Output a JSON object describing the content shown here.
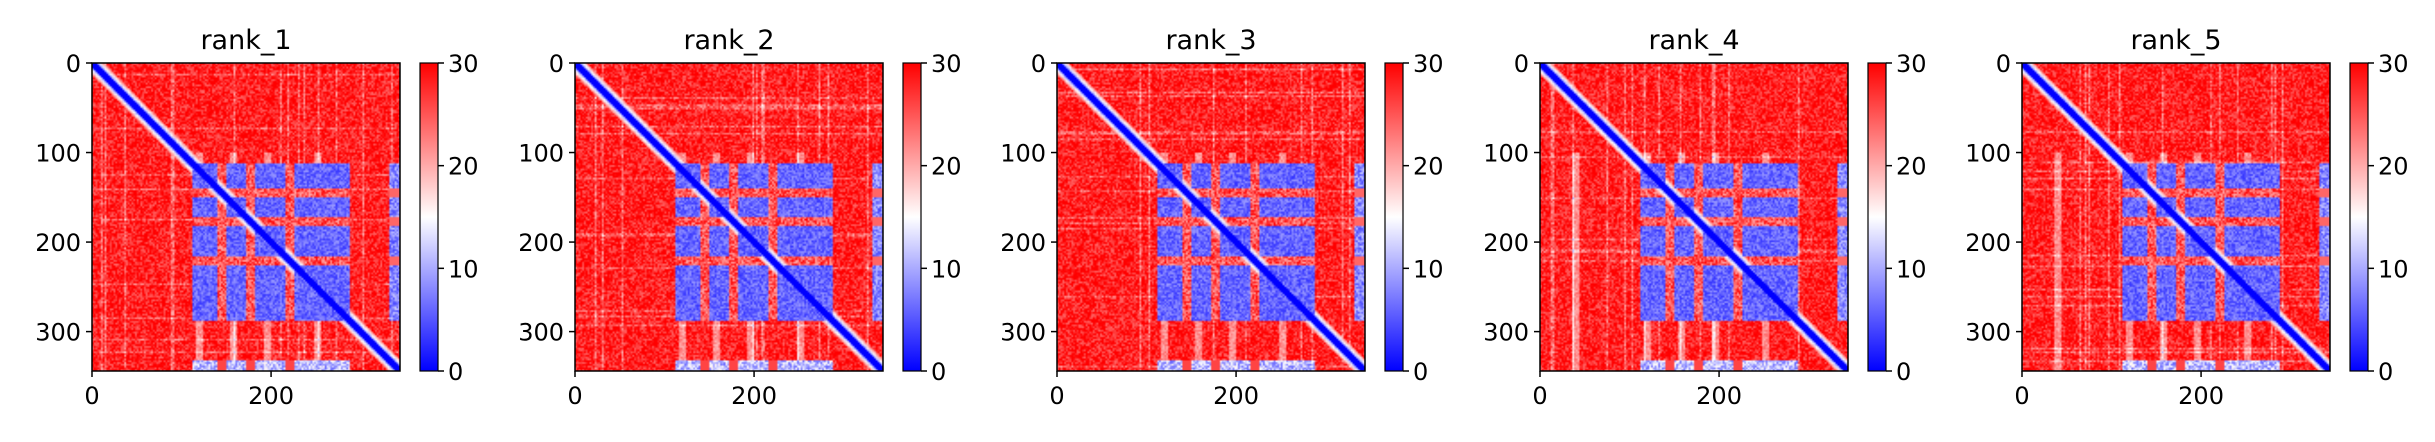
{
  "chart_data": [
    {
      "type": "heatmap",
      "title": "rank_1",
      "xlabel": "",
      "ylabel": "",
      "xlim": [
        0,
        344
      ],
      "ylim": [
        344,
        0
      ],
      "xticks": [
        0,
        200
      ],
      "xtick_labels": [
        "0",
        "200"
      ],
      "yticks": [
        0,
        100,
        200,
        300
      ],
      "ytick_labels": [
        "0",
        "100",
        "200",
        "300"
      ],
      "colorbar": {
        "range": [
          0,
          30
        ],
        "ticks": [
          0,
          10,
          20,
          30
        ],
        "tick_labels": [
          "0",
          "10",
          "20",
          "30"
        ],
        "colormap": "bwr"
      },
      "matrix_size": 344,
      "block_range": [
        112,
        288
      ],
      "edge_range": [
        332,
        344
      ],
      "low_bands": [
        [
          112,
          140
        ],
        [
          150,
          172
        ],
        [
          182,
          216
        ],
        [
          226,
          288
        ]
      ],
      "high_gaps": [
        [
          140,
          150
        ],
        [
          172,
          182
        ]
      ],
      "pale_columns": [
        120,
        158,
        196,
        252
      ],
      "noise_seed": 1
    },
    {
      "type": "heatmap",
      "title": "rank_2",
      "xlabel": "",
      "ylabel": "",
      "xlim": [
        0,
        344
      ],
      "ylim": [
        344,
        0
      ],
      "xticks": [
        0,
        200
      ],
      "xtick_labels": [
        "0",
        "200"
      ],
      "yticks": [
        0,
        100,
        200,
        300
      ],
      "ytick_labels": [
        "0",
        "100",
        "200",
        "300"
      ],
      "colorbar": {
        "range": [
          0,
          30
        ],
        "ticks": [
          0,
          10,
          20,
          30
        ],
        "tick_labels": [
          "0",
          "10",
          "20",
          "30"
        ],
        "colormap": "bwr"
      },
      "matrix_size": 344,
      "block_range": [
        112,
        288
      ],
      "edge_range": [
        332,
        344
      ],
      "low_bands": [
        [
          112,
          140
        ],
        [
          150,
          172
        ],
        [
          182,
          216
        ],
        [
          226,
          288
        ]
      ],
      "high_gaps": [
        [
          140,
          150
        ],
        [
          172,
          182
        ]
      ],
      "pale_columns": [
        120,
        158,
        196,
        252
      ],
      "noise_seed": 2
    },
    {
      "type": "heatmap",
      "title": "rank_3",
      "xlabel": "",
      "ylabel": "",
      "xlim": [
        0,
        344
      ],
      "ylim": [
        344,
        0
      ],
      "xticks": [
        0,
        200
      ],
      "xtick_labels": [
        "0",
        "200"
      ],
      "yticks": [
        0,
        100,
        200,
        300
      ],
      "ytick_labels": [
        "0",
        "100",
        "200",
        "300"
      ],
      "colorbar": {
        "range": [
          0,
          30
        ],
        "ticks": [
          0,
          10,
          20,
          30
        ],
        "tick_labels": [
          "0",
          "10",
          "20",
          "30"
        ],
        "colormap": "bwr"
      },
      "matrix_size": 344,
      "block_range": [
        112,
        288
      ],
      "edge_range": [
        332,
        344
      ],
      "low_bands": [
        [
          112,
          140
        ],
        [
          150,
          172
        ],
        [
          182,
          216
        ],
        [
          226,
          288
        ]
      ],
      "high_gaps": [
        [
          140,
          150
        ],
        [
          172,
          182
        ]
      ],
      "pale_columns": [
        120,
        158,
        196,
        252
      ],
      "noise_seed": 3
    },
    {
      "type": "heatmap",
      "title": "rank_4",
      "xlabel": "",
      "ylabel": "",
      "xlim": [
        0,
        344
      ],
      "ylim": [
        344,
        0
      ],
      "xticks": [
        0,
        200
      ],
      "xtick_labels": [
        "0",
        "200"
      ],
      "yticks": [
        0,
        100,
        200,
        300
      ],
      "ytick_labels": [
        "0",
        "100",
        "200",
        "300"
      ],
      "colorbar": {
        "range": [
          0,
          30
        ],
        "ticks": [
          0,
          10,
          20,
          30
        ],
        "tick_labels": [
          "0",
          "10",
          "20",
          "30"
        ],
        "colormap": "bwr"
      },
      "matrix_size": 344,
      "block_range": [
        112,
        288
      ],
      "edge_range": [
        332,
        344
      ],
      "low_bands": [
        [
          112,
          140
        ],
        [
          150,
          172
        ],
        [
          182,
          216
        ],
        [
          226,
          288
        ]
      ],
      "high_gaps": [
        [
          140,
          150
        ],
        [
          172,
          182
        ]
      ],
      "pale_columns": [
        40,
        120,
        158,
        196,
        252
      ],
      "noise_seed": 4
    },
    {
      "type": "heatmap",
      "title": "rank_5",
      "xlabel": "",
      "ylabel": "",
      "xlim": [
        0,
        344
      ],
      "ylim": [
        344,
        0
      ],
      "xticks": [
        0,
        200
      ],
      "xtick_labels": [
        "0",
        "200"
      ],
      "yticks": [
        0,
        100,
        200,
        300
      ],
      "ytick_labels": [
        "0",
        "100",
        "200",
        "300"
      ],
      "colorbar": {
        "range": [
          0,
          30
        ],
        "ticks": [
          0,
          10,
          20,
          30
        ],
        "tick_labels": [
          "0",
          "10",
          "20",
          "30"
        ],
        "colormap": "bwr"
      },
      "matrix_size": 344,
      "block_range": [
        112,
        288
      ],
      "edge_range": [
        332,
        344
      ],
      "low_bands": [
        [
          112,
          140
        ],
        [
          150,
          172
        ],
        [
          182,
          216
        ],
        [
          226,
          288
        ]
      ],
      "high_gaps": [
        [
          140,
          150
        ],
        [
          172,
          182
        ]
      ],
      "pale_columns": [
        40,
        120,
        158,
        196,
        252
      ],
      "noise_seed": 5
    }
  ],
  "colors": {
    "low": "#0000ff",
    "mid": "#ffffff",
    "high": "#ff0000"
  }
}
